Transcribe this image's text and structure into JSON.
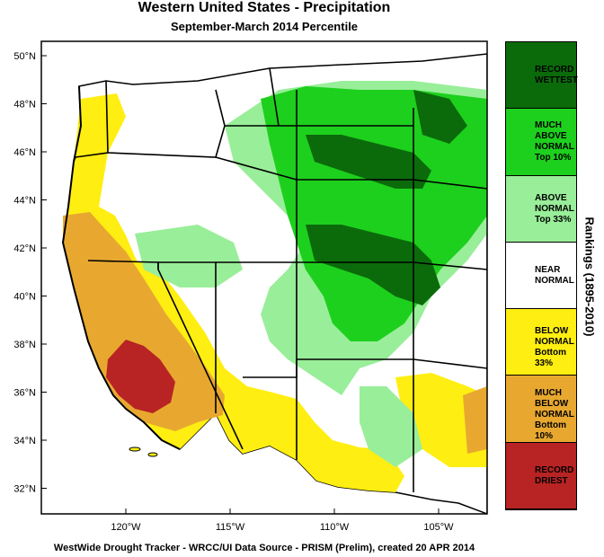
{
  "title": "Western United States - Precipitation",
  "subtitle": "September-March 2014 Percentile",
  "footer": "WestWide Drought Tracker - WRCC/UI  Data Source - PRISM (Prelim), created 20 APR 2014",
  "lat_labels": [
    "50°N",
    "48°N",
    "46°N",
    "44°N",
    "42°N",
    "40°N",
    "38°N",
    "36°N",
    "34°N",
    "32°N"
  ],
  "lon_labels": [
    "120°W",
    "115°W",
    "110°W",
    "105°W"
  ],
  "legend": {
    "title": "Rankings (1895-2010)",
    "items": [
      {
        "label": "RECORD\nWETTEST",
        "color": "#0b6b0b"
      },
      {
        "label": "MUCH\nABOVE\nNORMAL\nTop 10%",
        "color": "#1dd01d"
      },
      {
        "label": "ABOVE\nNORMAL\nTop 33%",
        "color": "#99ee99"
      },
      {
        "label": "NEAR\nNORMAL",
        "color": "#ffffff"
      },
      {
        "label": "BELOW\nNORMAL\nBottom 33%",
        "color": "#ffee11"
      },
      {
        "label": "MUCH\nBELOW\nNORMAL\nBottom 10%",
        "color": "#e8a830"
      },
      {
        "label": "RECORD\nDRIEST",
        "color": "#b82323"
      }
    ]
  }
}
